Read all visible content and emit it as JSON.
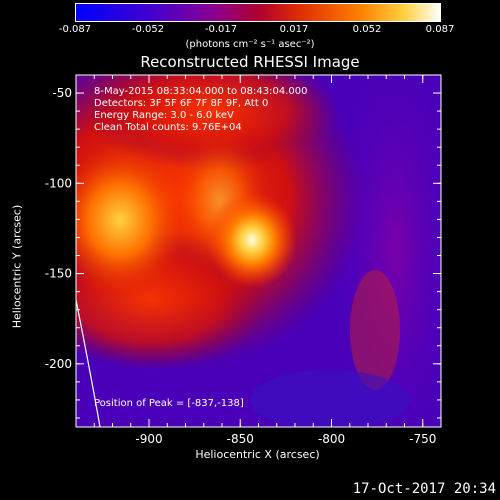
{
  "colorbar": {
    "ticks": [
      "-0.087",
      "-0.052",
      "-0.017",
      "0.017",
      "0.052",
      "0.087"
    ],
    "units": "(photons cm⁻² s⁻¹ asec⁻²)",
    "colors": [
      "#0000ff",
      "#5a00b4",
      "#8c0078",
      "#dc2800",
      "#ff8c00",
      "#ffff80",
      "#ffffff"
    ]
  },
  "chart_data": {
    "type": "heatmap",
    "title": "Reconstructed RHESSI Image",
    "xlabel": "Heliocentric X (arcsec)",
    "ylabel": "Heliocentric Y (arcsec)",
    "xlim": [
      -940,
      -740
    ],
    "ylim": [
      -235,
      -40
    ],
    "xticks": [
      "-900",
      "-850",
      "-800",
      "-750"
    ],
    "xtick_values": [
      -900,
      -850,
      -800,
      -750
    ],
    "yticks": [
      "-50",
      "-100",
      "-150",
      "-200"
    ],
    "ytick_values": [
      -50,
      -100,
      -150,
      -200
    ],
    "peak": {
      "x": -837,
      "y": -138
    },
    "annotations": [
      "8-May-2015 08:33:04.000 to 08:43:04.000",
      "Detectors: 3F 5F 6F 7F 8F 9F, Att 0",
      "Energy Range: 3.0 - 6.0 keV",
      "Clean     Total counts: 9.76E+04"
    ],
    "peak_label": "Position of Peak = [-837,-138]"
  },
  "footer": "17-Oct-2017 20:34"
}
